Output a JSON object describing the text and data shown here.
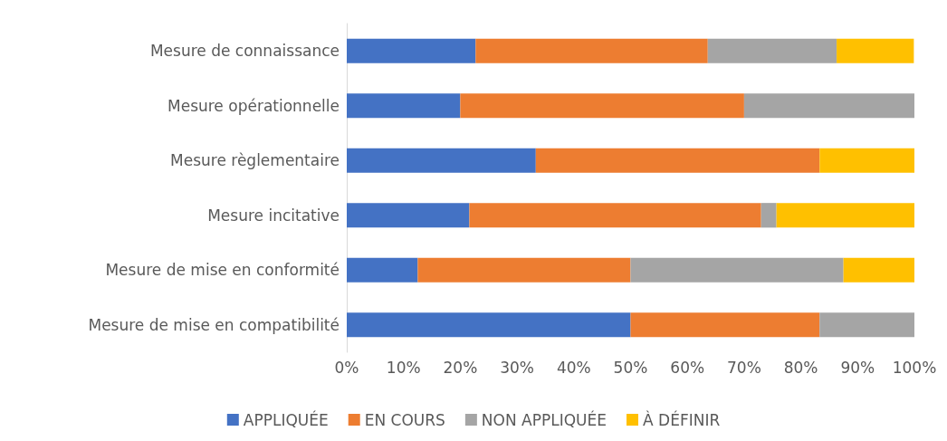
{
  "chart_data": {
    "type": "bar",
    "orientation": "horizontal",
    "stacked": true,
    "categories": [
      "Mesure de connaissance",
      "Mesure opérationnelle",
      "Mesure règlementaire",
      "Mesure incitative",
      "Mesure de mise en conformité",
      "Mesure de mise en compatibilité"
    ],
    "series": [
      {
        "name": "APPLIQUÉE",
        "color": "#4472c4",
        "values": [
          22.7,
          20,
          33.3,
          21.6,
          12.5,
          50
        ]
      },
      {
        "name": "EN COURS",
        "color": "#ed7d31",
        "values": [
          40.9,
          50,
          50,
          51.4,
          37.5,
          33.3
        ]
      },
      {
        "name": "NON APPLIQUÉE",
        "color": "#a5a5a5",
        "values": [
          22.7,
          30,
          0,
          2.7,
          37.5,
          16.7
        ]
      },
      {
        "name": "À DÉFINIR",
        "color": "#ffc000",
        "values": [
          13.6,
          0,
          16.7,
          24.3,
          12.5,
          0
        ]
      }
    ],
    "xlim": [
      0,
      100
    ],
    "xticks": [
      {
        "value": 0,
        "label": "0%"
      },
      {
        "value": 10,
        "label": "10%"
      },
      {
        "value": 20,
        "label": "20%"
      },
      {
        "value": 30,
        "label": "30%"
      },
      {
        "value": 40,
        "label": "40%"
      },
      {
        "value": 50,
        "label": "50%"
      },
      {
        "value": 60,
        "label": "60%"
      },
      {
        "value": 70,
        "label": "70%"
      },
      {
        "value": 80,
        "label": "80%"
      },
      {
        "value": 90,
        "label": "90%"
      },
      {
        "value": 100,
        "label": "100%"
      }
    ],
    "grid": false,
    "legend": "bottom"
  }
}
